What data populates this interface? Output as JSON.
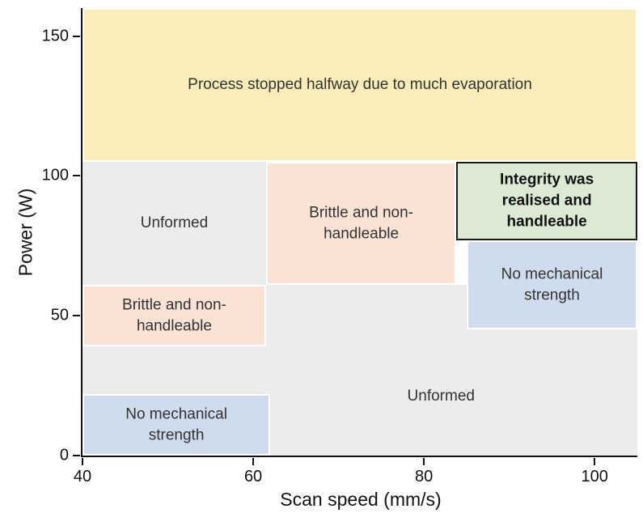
{
  "chart_data": {
    "type": "region-map",
    "title": "",
    "xlabel": "Scan speed (mm/s)",
    "ylabel": "Power (W)",
    "xlim": [
      40,
      105
    ],
    "ylim": [
      0,
      160
    ],
    "x_ticks": [
      40,
      60,
      80,
      100
    ],
    "y_ticks": [
      0,
      50,
      100,
      150
    ],
    "grid": false,
    "legend": "none",
    "axis_color": "#111111",
    "regions": [
      {
        "name": "unformed-bottom",
        "label": "Unformed",
        "x0": 40,
        "x1": 105,
        "y0": 0,
        "y1": 61,
        "label_x": 82,
        "label_y": 21,
        "color": "#ececec",
        "border": "",
        "bold": false
      },
      {
        "name": "unformed-upper-left",
        "label": "Unformed",
        "x0": 40,
        "x1": 61.5,
        "y0": 61,
        "y1": 105,
        "color": "#ececec",
        "border": "",
        "bold": false
      },
      {
        "name": "evaporation",
        "label": "Process stopped halfway due to much evaporation",
        "x0": 40,
        "x1": 105,
        "y0": 105,
        "y1": 160,
        "color": "#faedb9",
        "border": "2px solid #ffffff",
        "bold": false
      },
      {
        "name": "brittle-left",
        "label": "Brittle and non-\nhandleable",
        "x0": 40,
        "x1": 61.5,
        "y0": 39,
        "y1": 61,
        "color": "#fae3d4",
        "border": "2px solid #ffffff",
        "bold": false
      },
      {
        "name": "brittle-mid",
        "label": "Brittle and non-\nhandleable",
        "x0": 61.5,
        "x1": 83.8,
        "y0": 61,
        "y1": 105,
        "color": "#fae3d4",
        "border": "2px solid #ffffff",
        "bold": false
      },
      {
        "name": "no-strength-bottom-left",
        "label": "No mechanical\nstrength",
        "x0": 40,
        "x1": 62,
        "y0": 0,
        "y1": 22,
        "color": "#cfdced",
        "border": "2px solid #ffffff",
        "bold": false
      },
      {
        "name": "no-strength-right",
        "label": "No mechanical\nstrength",
        "x0": 85,
        "x1": 105,
        "y0": 45,
        "y1": 77,
        "color": "#cfdced",
        "border": "2px solid #ffffff",
        "bold": false
      },
      {
        "name": "integrity",
        "label": "Integrity was\nrealised and\nhandleable",
        "x0": 83.8,
        "x1": 105,
        "y0": 77,
        "y1": 105,
        "color": "#dcead3",
        "border": "2.5px solid #1a1a1a",
        "bold": true
      }
    ]
  }
}
